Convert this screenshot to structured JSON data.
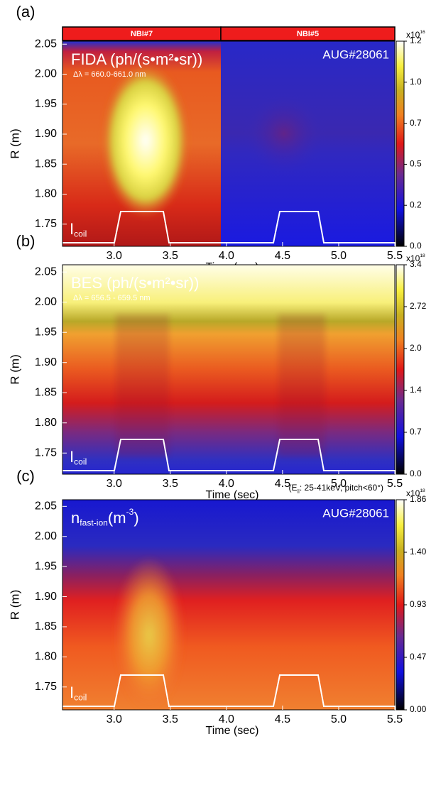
{
  "chart_data": [
    {
      "type": "heatmap",
      "panel_label": "(a)",
      "title": [
        {
          "text": "FIDA (ph/(s•m²•sr))"
        }
      ],
      "subtitle": "Δλ = 660.0-661.0 nm",
      "shot": "AUG#28061",
      "nbi_labels": [
        "NBI#7",
        "NBI#5"
      ],
      "trace_label": [
        {
          "text": "I"
        },
        {
          "text": "coil",
          "script": "sub"
        }
      ],
      "xlabel": "Time (sec)",
      "ylabel": "R (m)",
      "xlim": [
        2.54,
        5.5
      ],
      "xticks": [
        {
          "value": 3,
          "label": "3.0"
        },
        3.5,
        {
          "value": 4,
          "label": "4.0"
        },
        4.5,
        {
          "value": 5,
          "label": "5.0"
        },
        5.5
      ],
      "ylim": [
        1.713,
        2.055
      ],
      "yticks": [
        1.75,
        {
          "value": 1.8,
          "label": "1.80"
        },
        1.85,
        {
          "value": 1.9,
          "label": "1.90"
        },
        1.95,
        {
          "value": 2,
          "label": "2.00"
        },
        2.05
      ],
      "colorbar": {
        "exponent": [
          {
            "text": "x10"
          },
          {
            "text": "16",
            "script": "sup"
          }
        ],
        "lim": [
          0,
          1.2
        ],
        "ticks": [
          {
            "value": 0,
            "label": "0.0"
          },
          {
            "value": 0.24,
            "label": "0.2"
          },
          {
            "value": 0.48,
            "label": "0.5"
          },
          {
            "value": 0.72,
            "label": "0.7"
          },
          {
            "value": 0.96,
            "label": "1.0"
          },
          1.2
        ]
      }
    },
    {
      "type": "heatmap",
      "panel_label": "(b)",
      "title": [
        {
          "text": "BES (ph/(s•m²•sr))"
        }
      ],
      "subtitle": "Δλ = 656.5 - 659.5 nm",
      "trace_label": [
        {
          "text": "I"
        },
        {
          "text": "coil",
          "script": "sub"
        }
      ],
      "xlabel": "Time (sec)",
      "ylabel": "R (m)",
      "xlim": [
        2.54,
        5.5
      ],
      "xticks": [
        {
          "value": 3,
          "label": "3.0"
        },
        3.5,
        {
          "value": 4,
          "label": "4.0"
        },
        4.5,
        {
          "value": 5,
          "label": "5.0"
        },
        5.5
      ],
      "ylim": [
        1.715,
        2.062
      ],
      "yticks": [
        1.75,
        {
          "value": 1.8,
          "label": "1.80"
        },
        1.85,
        {
          "value": 1.9,
          "label": "1.90"
        },
        1.95,
        {
          "value": 2,
          "label": "2.00"
        },
        2.05
      ],
      "colorbar": {
        "exponent": [
          {
            "text": "x10"
          },
          {
            "text": "18",
            "script": "sup"
          }
        ],
        "lim": [
          0,
          3.4
        ],
        "ticks": [
          {
            "value": 0,
            "label": "0.0"
          },
          {
            "value": 0.68,
            "label": "0.7"
          },
          {
            "value": 1.36,
            "label": "1.4"
          },
          {
            "value": 2.04,
            "label": "2.0"
          },
          2.72,
          3.4
        ]
      }
    },
    {
      "type": "heatmap",
      "panel_label": "(c)",
      "title": [
        {
          "text": "n"
        },
        {
          "text": "fast-ion",
          "script": "sub"
        },
        {
          "text": "(m"
        },
        {
          "text": "-3",
          "script": "sup"
        },
        {
          "text": ")"
        }
      ],
      "annotation": [
        {
          "text": "(E"
        },
        {
          "text": "||",
          "script": "sub"
        },
        {
          "text": ": 25-41keV, pitch<60°)"
        }
      ],
      "shot": "AUG#28061",
      "trace_label": [
        {
          "text": "I"
        },
        {
          "text": "coil",
          "script": "sub"
        }
      ],
      "xlabel": "Time (sec)",
      "ylabel": "R (m)",
      "xlim": [
        2.54,
        5.5
      ],
      "xticks": [
        {
          "value": 3,
          "label": "3.0"
        },
        3.5,
        {
          "value": 4,
          "label": "4.0"
        },
        4.5,
        {
          "value": 5,
          "label": "5.0"
        },
        5.5
      ],
      "ylim": [
        1.712,
        2.061
      ],
      "yticks": [
        1.75,
        {
          "value": 1.8,
          "label": "1.80"
        },
        1.85,
        {
          "value": 1.9,
          "label": "1.90"
        },
        1.95,
        {
          "value": 2,
          "label": "2.00"
        },
        2.05
      ],
      "colorbar": {
        "exponent": [
          {
            "text": "x10"
          },
          {
            "text": "18",
            "script": "sup"
          }
        ],
        "lim": [
          0,
          1.86
        ],
        "ticks": [
          {
            "value": 0,
            "label": "0.00"
          },
          {
            "value": 0.465,
            "label": "0.47"
          },
          0.93,
          {
            "value": 1.395,
            "label": "1.40"
          },
          1.86
        ]
      }
    }
  ]
}
